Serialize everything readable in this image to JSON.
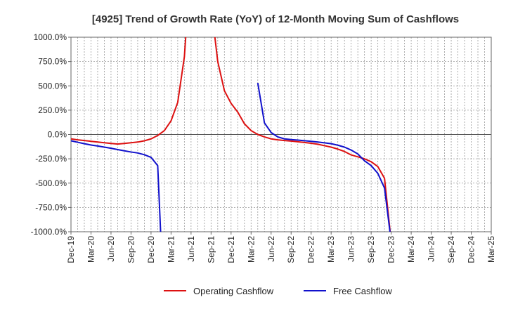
{
  "chart_data": {
    "type": "line",
    "title": "[4925]  Trend of Growth Rate (YoY) of 12-Month Moving Sum of Cashflows",
    "xlabel": "",
    "ylabel": "",
    "ylim": [
      -1000,
      1000
    ],
    "yticks": [
      "1000.0%",
      "750.0%",
      "500.0%",
      "250.0%",
      "0.0%",
      "-250.0%",
      "-500.0%",
      "-750.0%",
      "-1000.0%"
    ],
    "ytick_values": [
      1000,
      750,
      500,
      250,
      0,
      -250,
      -500,
      -750,
      -1000
    ],
    "x_tick_labels": [
      "Dec-19",
      "Mar-20",
      "Jun-20",
      "Sep-20",
      "Dec-20",
      "Mar-21",
      "Jun-21",
      "Sep-21",
      "Dec-21",
      "Mar-22",
      "Jun-22",
      "Sep-22",
      "Dec-22",
      "Mar-23",
      "Jun-23",
      "Sep-23",
      "Dec-23",
      "Mar-24",
      "Jun-24",
      "Sep-24",
      "Dec-24",
      "Mar-25"
    ],
    "grid": true,
    "legend_position": "bottom",
    "colors": {
      "operating": "#dd1111",
      "free": "#1111cc",
      "grid": "#999999",
      "axis": "#666666"
    },
    "series": [
      {
        "name": "Operating Cashflow",
        "points": [
          [
            0,
            -45
          ],
          [
            1,
            -55
          ],
          [
            2,
            -62
          ],
          [
            3,
            -70
          ],
          [
            4,
            -78
          ],
          [
            5,
            -85
          ],
          [
            6,
            -92
          ],
          [
            7,
            -98
          ],
          [
            8,
            -92
          ],
          [
            9,
            -85
          ],
          [
            10,
            -78
          ],
          [
            11,
            -65
          ],
          [
            12,
            -45
          ],
          [
            13,
            -10
          ],
          [
            14,
            40
          ],
          [
            15,
            140
          ],
          [
            16,
            330
          ],
          [
            17,
            800
          ],
          [
            17.3,
            1100
          ],
          [
            null,
            null
          ],
          [
            21.4,
            1100
          ],
          [
            22,
            750
          ],
          [
            23,
            450
          ],
          [
            24,
            320
          ],
          [
            25,
            230
          ],
          [
            26,
            110
          ],
          [
            27,
            40
          ],
          [
            28,
            0
          ],
          [
            29,
            -25
          ],
          [
            30,
            -45
          ],
          [
            31,
            -55
          ],
          [
            32,
            -62
          ],
          [
            33,
            -68
          ],
          [
            34,
            -75
          ],
          [
            35,
            -82
          ],
          [
            36,
            -90
          ],
          [
            37,
            -100
          ],
          [
            38,
            -115
          ],
          [
            39,
            -130
          ],
          [
            40,
            -150
          ],
          [
            41,
            -175
          ],
          [
            42,
            -210
          ],
          [
            43,
            -230
          ],
          [
            44,
            -250
          ],
          [
            45,
            -280
          ],
          [
            46,
            -330
          ],
          [
            47,
            -450
          ],
          [
            48,
            -1100
          ]
        ]
      },
      {
        "name": "Free Cashflow",
        "points": [
          [
            0,
            -65
          ],
          [
            1,
            -80
          ],
          [
            2,
            -95
          ],
          [
            3,
            -108
          ],
          [
            4,
            -118
          ],
          [
            5,
            -130
          ],
          [
            6,
            -142
          ],
          [
            7,
            -155
          ],
          [
            8,
            -168
          ],
          [
            9,
            -180
          ],
          [
            10,
            -190
          ],
          [
            11,
            -208
          ],
          [
            12,
            -235
          ],
          [
            13,
            -320
          ],
          [
            13.5,
            -1100
          ],
          [
            null,
            null
          ],
          [
            28,
            530
          ],
          [
            29,
            120
          ],
          [
            30,
            20
          ],
          [
            31,
            -25
          ],
          [
            32,
            -45
          ],
          [
            33,
            -52
          ],
          [
            34,
            -58
          ],
          [
            35,
            -64
          ],
          [
            36,
            -70
          ],
          [
            37,
            -78
          ],
          [
            38,
            -86
          ],
          [
            39,
            -95
          ],
          [
            40,
            -110
          ],
          [
            41,
            -130
          ],
          [
            42,
            -160
          ],
          [
            43,
            -200
          ],
          [
            44,
            -270
          ],
          [
            45,
            -320
          ],
          [
            46,
            -400
          ],
          [
            47,
            -550
          ],
          [
            48,
            -1100
          ]
        ]
      }
    ]
  }
}
